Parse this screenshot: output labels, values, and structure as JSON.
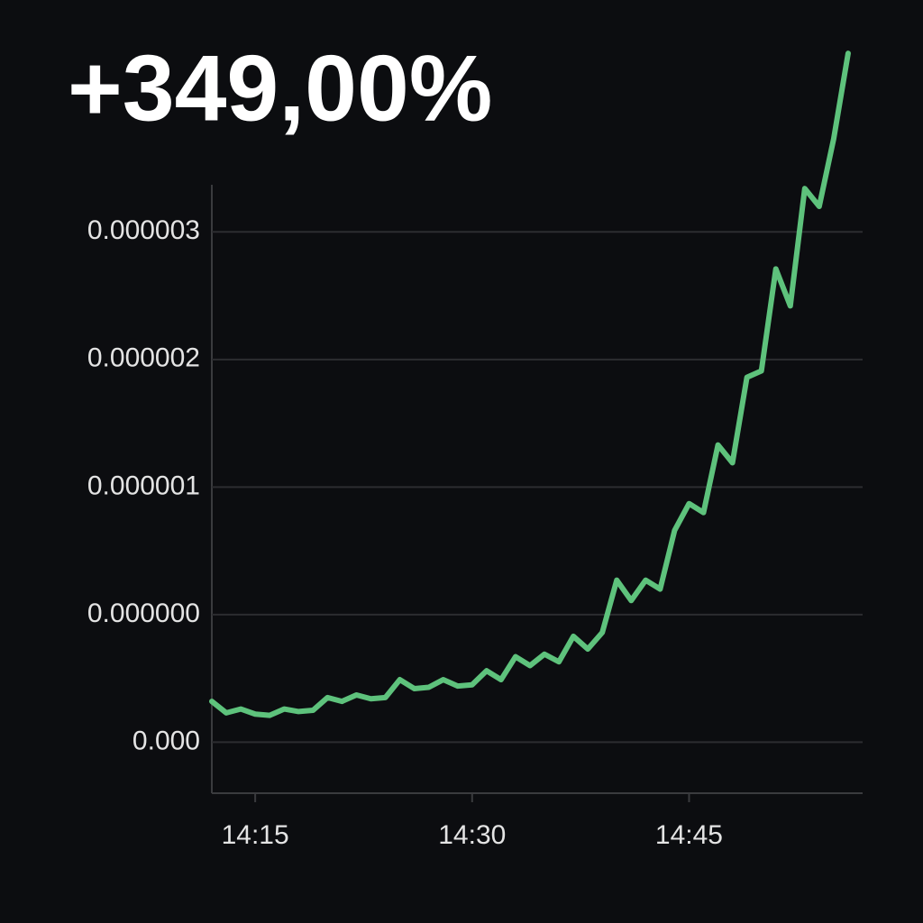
{
  "chart_data": {
    "type": "line",
    "title": "+349,00%",
    "x": [
      "14:12",
      "14:13",
      "14:14",
      "14:15",
      "14:16",
      "14:17",
      "14:18",
      "14:19",
      "14:20",
      "14:21",
      "14:22",
      "14:23",
      "14:24",
      "14:25",
      "14:26",
      "14:27",
      "14:28",
      "14:29",
      "14:30",
      "14:31",
      "14:32",
      "14:33",
      "14:34",
      "14:35",
      "14:36",
      "14:37",
      "14:38",
      "14:39",
      "14:40",
      "14:41",
      "14:42",
      "14:43",
      "14:44",
      "14:45",
      "14:46",
      "14:47",
      "14:48",
      "14:49",
      "14:50",
      "14:51",
      "14:52",
      "14:53",
      "14:54",
      "14:55",
      "14:56"
    ],
    "series": [
      {
        "color": "#5ec27c",
        "values": [
          -6.8e-07,
          -7.7e-07,
          -7.4e-07,
          -7.8e-07,
          -7.9e-07,
          -7.4e-07,
          -7.6e-07,
          -7.5e-07,
          -6.5e-07,
          -6.8e-07,
          -6.3e-07,
          -6.6e-07,
          -6.5e-07,
          -5.1e-07,
          -5.8e-07,
          -5.7e-07,
          -5.1e-07,
          -5.6e-07,
          -5.5e-07,
          -4.4e-07,
          -5.1e-07,
          -3.3e-07,
          -4e-07,
          -3.1e-07,
          -3.7e-07,
          -1.7e-07,
          -2.7e-07,
          -1.4e-07,
          2.7e-07,
          1.1e-07,
          2.7e-07,
          2e-07,
          6.6e-07,
          8.7e-07,
          8e-07,
          1.33e-06,
          1.19e-06,
          1.86e-06,
          1.91e-06,
          2.71e-06,
          2.42e-06,
          3.34e-06,
          3.2e-06,
          3.73e-06,
          4.4e-06
        ]
      }
    ],
    "xlim": [
      "14:12",
      "14:57"
    ],
    "xticks": [
      "14:15",
      "14:30",
      "14:45"
    ],
    "ylim": [
      -1.4e-06,
      4.5e-06
    ],
    "yticks": [
      3e-06,
      2e-06,
      1e-06,
      {
        "value": 0,
        "label": "0.000000"
      },
      {
        "value": -1e-06,
        "label": "0.000"
      }
    ],
    "grid": true
  }
}
